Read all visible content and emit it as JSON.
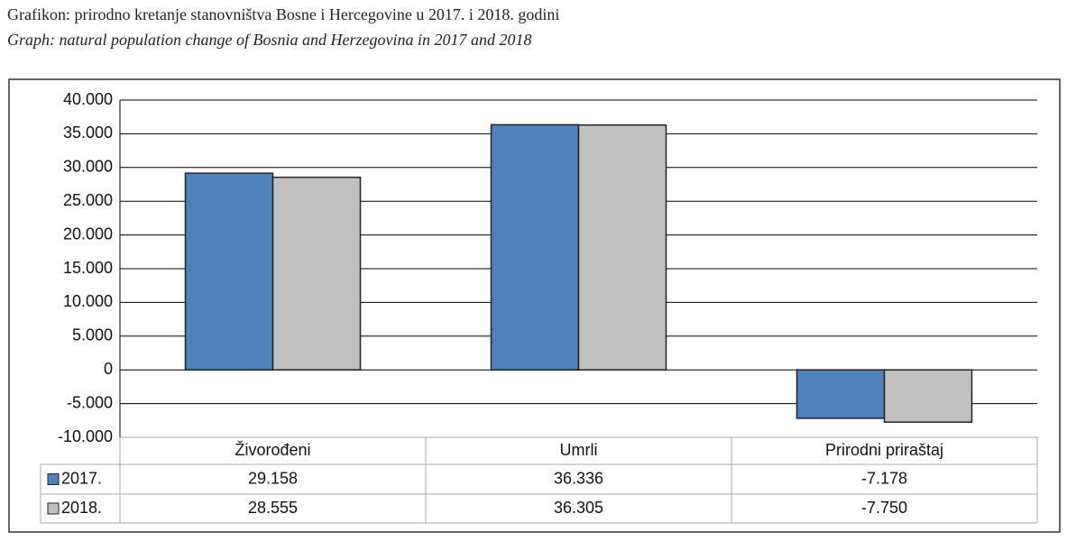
{
  "chart_data": {
    "type": "bar",
    "title": "Grafikon: prirodno kretanje stanovništva Bosne i Hercegovine u 2017. i 2018. godini",
    "subtitle": "Graph: natural population change of Bosnia and Herzegovina in  2017 and 2018",
    "categories": [
      "Živorođeni",
      "Umrli",
      "Prirodni priraštaj"
    ],
    "series": [
      {
        "name": "2017.",
        "color": "#4f81bd",
        "values": [
          29158,
          36336,
          -7178
        ],
        "value_labels": [
          "29.158",
          "36.336",
          "-7.178"
        ]
      },
      {
        "name": "2018.",
        "color": "#c0c0c0",
        "values": [
          28555,
          36305,
          -7750
        ],
        "value_labels": [
          "28.555",
          "36.305",
          "-7.750"
        ]
      }
    ],
    "ylim": [
      -10000,
      40000
    ],
    "yticks": [
      {
        "value": -10000,
        "label": "-10.000"
      },
      {
        "value": -5000,
        "label": "-5.000"
      },
      0,
      {
        "value": 5000,
        "label": "5.000"
      },
      {
        "value": 10000,
        "label": "10.000"
      },
      {
        "value": 15000,
        "label": "15.000"
      },
      {
        "value": 20000,
        "label": "20.000"
      },
      {
        "value": 25000,
        "label": "25.000"
      },
      {
        "value": 30000,
        "label": "30.000"
      },
      {
        "value": 35000,
        "label": "35.000"
      },
      {
        "value": 40000,
        "label": "40.000"
      }
    ],
    "grid": true
  }
}
